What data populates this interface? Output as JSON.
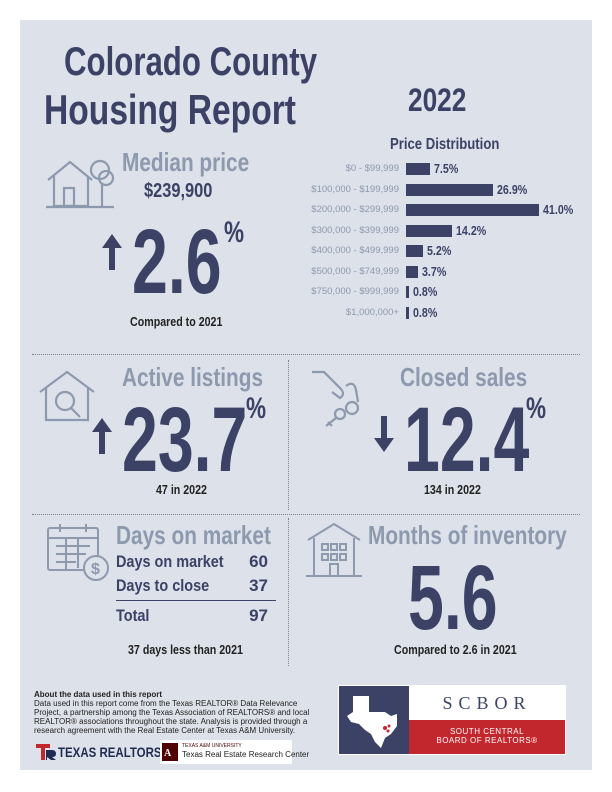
{
  "header": {
    "title_line1": "Colorado County",
    "title_line2": "Housing Report",
    "year": "2022"
  },
  "median": {
    "heading": "Median price",
    "price": "$239,900",
    "change": "2.6",
    "percent": "%",
    "direction": "up",
    "note": "Compared to 2021"
  },
  "distribution": {
    "title": "Price Distribution",
    "chart_data": {
      "type": "bar",
      "categories": [
        "$0 - $99,999",
        "$100,000 - $199,999",
        "$200,000 - $299,999",
        "$300,000 - $399,999",
        "$400,000 - $499,999",
        "$500,000 - $749,999",
        "$750,000 - $999,999",
        "$1,000,000+"
      ],
      "values": [
        7.5,
        26.9,
        41.0,
        14.2,
        5.2,
        3.7,
        0.8,
        0.8
      ],
      "value_labels": [
        "7.5%",
        "26.9%",
        "41.0%",
        "14.2%",
        "5.2%",
        "3.7%",
        "0.8%",
        "0.8%"
      ],
      "orientation": "horizontal",
      "color": "#3b4266"
    }
  },
  "active": {
    "heading": "Active listings",
    "change": "23.7",
    "percent": "%",
    "direction": "up",
    "note": "47 in 2022"
  },
  "closed": {
    "heading": "Closed sales",
    "change": "12.4",
    "percent": "%",
    "direction": "down",
    "note": "134 in 2022"
  },
  "days": {
    "heading": "Days on market",
    "rows": [
      {
        "label": "Days on market",
        "value": "60"
      },
      {
        "label": "Days to close",
        "value": "37"
      },
      {
        "label": "Total",
        "value": "97"
      }
    ],
    "note": "37 days less than 2021"
  },
  "inventory": {
    "heading": "Months of inventory",
    "value": "5.6",
    "note": "Compared to 2.6 in 2021"
  },
  "footer": {
    "about_title": "About the data used in this report",
    "about_text": "Data used in this report come from the Texas REALTOR® Data Relevance Project, a partnership among the Texas Association of REALTORS® and local REALTOR® associations throughout the state. Analysis is provided through a research agreement with the Real Estate Center at Texas A&M University.",
    "texas_realtors": "TEXAS REALTORS",
    "tamu_small": "TEXAS A&M UNIVERSITY",
    "tamu_center": "Texas Real Estate Research Center",
    "scbor_acronym": "SCBOR",
    "scbor_line1": "SOUTH CENTRAL",
    "scbor_line2": "BOARD OF REALTORS®"
  },
  "colors": {
    "navy": "#3b4266",
    "muted": "#8d99ad",
    "background": "#dde1ea",
    "scbor_red": "#c1272d"
  }
}
